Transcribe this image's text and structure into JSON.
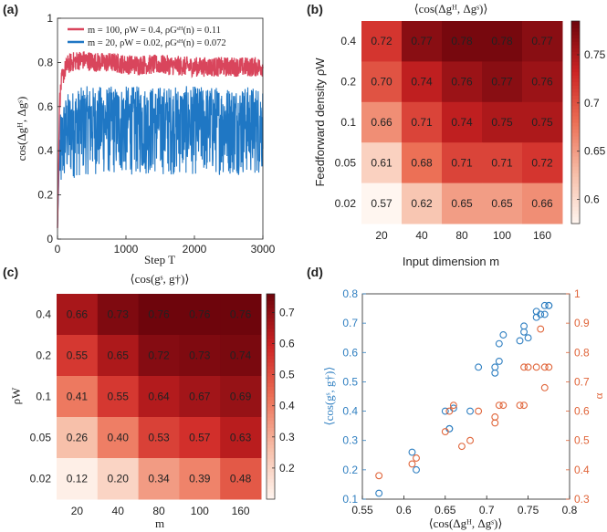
{
  "panel_labels": [
    "(a)",
    "(b)",
    "(c)",
    "(d)"
  ],
  "chart_data": [
    {
      "id": "a",
      "type": "line",
      "title": "",
      "xlabel": "Step T",
      "ylabel": "cos(Δgᴴ, Δgˢ)",
      "xlim": [
        0,
        3000
      ],
      "ylim": [
        0,
        1
      ],
      "xticks": [
        "0",
        "1000",
        "2000",
        "3000"
      ],
      "yticks": [
        "0",
        "0.2",
        "0.4",
        "0.6",
        "0.8",
        "1"
      ],
      "legend_position": "top",
      "series": [
        {
          "name": "m = 100, ρW = 0.4, ρGˢᴴ(n) = 0.11",
          "color": "#d9455c",
          "x": [
            0,
            30,
            60,
            100,
            150,
            200,
            300,
            400,
            600,
            800,
            1000,
            1500,
            2000,
            2500,
            3000
          ],
          "values": [
            0.05,
            0.62,
            0.72,
            0.76,
            0.79,
            0.8,
            0.81,
            0.81,
            0.8,
            0.8,
            0.79,
            0.79,
            0.78,
            0.78,
            0.78
          ],
          "noise": 0.045
        },
        {
          "name": "m = 20, ρW = 0.02, ρGˢᴴ(n) = 0.072",
          "color": "#1f77c4",
          "x": [
            0,
            30,
            60,
            100,
            150,
            200,
            300,
            400,
            600,
            800,
            1000,
            1500,
            2000,
            2500,
            3000
          ],
          "values": [
            0.05,
            0.4,
            0.45,
            0.5,
            0.52,
            0.53,
            0.54,
            0.55,
            0.55,
            0.55,
            0.55,
            0.55,
            0.55,
            0.55,
            0.55
          ],
          "noise": 0.26
        }
      ]
    },
    {
      "id": "b",
      "type": "heatmap",
      "title": "⟨cos(Δgᴴ, Δgˢ)⟩",
      "xlabel": "Input dimension m",
      "ylabel": "Feedforward density ρW",
      "x_categories": [
        "20",
        "40",
        "80",
        "100",
        "160"
      ],
      "y_categories": [
        "0.4",
        "0.2",
        "0.1",
        "0.05",
        "0.02"
      ],
      "values": [
        [
          0.72,
          0.77,
          0.78,
          0.78,
          0.77
        ],
        [
          0.7,
          0.74,
          0.76,
          0.77,
          0.76
        ],
        [
          0.66,
          0.71,
          0.74,
          0.75,
          0.75
        ],
        [
          0.61,
          0.68,
          0.71,
          0.71,
          0.72
        ],
        [
          0.57,
          0.62,
          0.65,
          0.65,
          0.66
        ]
      ],
      "cell_labels": [
        [
          "0.72",
          "0.77",
          "0.78",
          "0.78",
          "0.77"
        ],
        [
          "0.70",
          "0.74",
          "0.76",
          "0.77",
          "0.76"
        ],
        [
          "0.66",
          "0.71",
          "0.74",
          "0.75",
          "0.75"
        ],
        [
          "0.61",
          "0.68",
          "0.71",
          "0.71",
          "0.72"
        ],
        [
          "0.57",
          "0.62",
          "0.65",
          "0.65",
          "0.66"
        ]
      ],
      "colorbar_range": [
        0.575,
        0.785
      ],
      "colorbar_ticks": [
        "0.6",
        "0.65",
        "0.7",
        "0.75"
      ]
    },
    {
      "id": "c",
      "type": "heatmap",
      "title": "⟨cos(gˢ, g†)⟩",
      "xlabel": "m",
      "ylabel": "ρW",
      "x_categories": [
        "20",
        "40",
        "80",
        "100",
        "160"
      ],
      "y_categories": [
        "0.4",
        "0.2",
        "0.1",
        "0.05",
        "0.02"
      ],
      "values": [
        [
          0.66,
          0.73,
          0.76,
          0.76,
          0.76
        ],
        [
          0.55,
          0.65,
          0.72,
          0.73,
          0.74
        ],
        [
          0.41,
          0.55,
          0.64,
          0.67,
          0.69
        ],
        [
          0.26,
          0.4,
          0.53,
          0.57,
          0.63
        ],
        [
          0.12,
          0.2,
          0.34,
          0.39,
          0.48
        ]
      ],
      "cell_labels": [
        [
          "0.66",
          "0.73",
          "0.76",
          "0.76",
          "0.76"
        ],
        [
          "0.55",
          "0.65",
          "0.72",
          "0.73",
          "0.74"
        ],
        [
          "0.41",
          "0.55",
          "0.64",
          "0.67",
          "0.69"
        ],
        [
          "0.26",
          "0.40",
          "0.53",
          "0.57",
          "0.63"
        ],
        [
          "0.12",
          "0.20",
          "0.34",
          "0.39",
          "0.48"
        ]
      ],
      "colorbar_range": [
        0.1,
        0.76
      ],
      "colorbar_ticks": [
        "0.2",
        "0.3",
        "0.4",
        "0.5",
        "0.6",
        "0.7"
      ]
    },
    {
      "id": "d",
      "type": "scatter",
      "xlabel": "⟨cos(Δgᴴ, Δgˢ)⟩",
      "ylabel_left": "⟨cos(gˢ, g†)⟩",
      "ylabel_right": "α",
      "xlim": [
        0.55,
        0.8
      ],
      "ylim_left": [
        0.1,
        0.8
      ],
      "ylim_right": [
        0.3,
        1.0
      ],
      "xticks": [
        "0.55",
        "0.6",
        "0.65",
        "0.7",
        "0.75",
        "0.8"
      ],
      "yticks_left": [
        "0.1",
        "0.2",
        "0.3",
        "0.4",
        "0.5",
        "0.6",
        "0.7",
        "0.8"
      ],
      "yticks_right": [
        "0.3",
        "0.4",
        "0.5",
        "0.6",
        "0.7",
        "0.8",
        "0.9",
        "1"
      ],
      "series": [
        {
          "name": "⟨cos(gˢ, g†)⟩",
          "axis": "left",
          "color": "#2f7fc1",
          "x": [
            0.57,
            0.61,
            0.615,
            0.65,
            0.655,
            0.655,
            0.66,
            0.68,
            0.69,
            0.71,
            0.71,
            0.715,
            0.715,
            0.72,
            0.74,
            0.745,
            0.745,
            0.75,
            0.76,
            0.76,
            0.765,
            0.77,
            0.77,
            0.775,
            0.775
          ],
          "values": [
            0.12,
            0.26,
            0.2,
            0.4,
            0.34,
            0.34,
            0.41,
            0.4,
            0.55,
            0.55,
            0.53,
            0.57,
            0.63,
            0.66,
            0.64,
            0.67,
            0.69,
            0.65,
            0.72,
            0.74,
            0.73,
            0.73,
            0.76,
            0.76,
            0.76
          ]
        },
        {
          "name": "α",
          "axis": "right",
          "color": "#e0653a",
          "x": [
            0.57,
            0.61,
            0.615,
            0.65,
            0.655,
            0.66,
            0.67,
            0.68,
            0.69,
            0.71,
            0.71,
            0.715,
            0.72,
            0.74,
            0.745,
            0.745,
            0.75,
            0.76,
            0.765,
            0.77,
            0.77,
            0.775
          ],
          "values": [
            0.38,
            0.42,
            0.44,
            0.53,
            0.6,
            0.62,
            0.48,
            0.5,
            0.6,
            0.56,
            0.58,
            0.62,
            0.62,
            0.62,
            0.62,
            0.75,
            0.75,
            0.75,
            0.88,
            0.75,
            0.68,
            0.75
          ]
        }
      ]
    }
  ]
}
